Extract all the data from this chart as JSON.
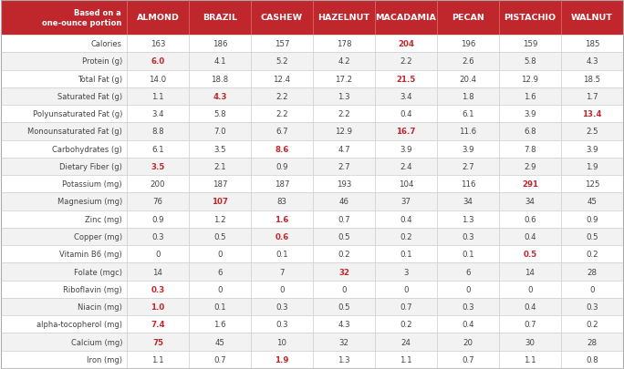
{
  "header_bg": "#c0272d",
  "header_text_color": "#ffffff",
  "highlight_color": "#c0272d",
  "normal_color": "#444444",
  "alt_row_bg": "#f2f2f2",
  "white_row_bg": "#ffffff",
  "border_color": "#cccccc",
  "header_divider_color": "#d9686b",
  "col_header_label": "Based on a\none-ounce portion",
  "columns": [
    "ALMOND",
    "BRAZIL",
    "CASHEW",
    "HAZELNUT",
    "MACADAMIA",
    "PECAN",
    "PISTACHIO",
    "WALNUT"
  ],
  "rows": [
    {
      "label": "Calories",
      "values": [
        "163",
        "186",
        "157",
        "178",
        "204",
        "196",
        "159",
        "185"
      ],
      "bold_indices": [
        4
      ]
    },
    {
      "label": "Protein (g)",
      "values": [
        "6.0",
        "4.1",
        "5.2",
        "4.2",
        "2.2",
        "2.6",
        "5.8",
        "4.3"
      ],
      "bold_indices": [
        0
      ]
    },
    {
      "label": "Total Fat (g)",
      "values": [
        "14.0",
        "18.8",
        "12.4",
        "17.2",
        "21.5",
        "20.4",
        "12.9",
        "18.5"
      ],
      "bold_indices": [
        4
      ]
    },
    {
      "label": "Saturated Fat (g)",
      "values": [
        "1.1",
        "4.3",
        "2.2",
        "1.3",
        "3.4",
        "1.8",
        "1.6",
        "1.7"
      ],
      "bold_indices": [
        1
      ]
    },
    {
      "label": "Polyunsaturated Fat (g)",
      "values": [
        "3.4",
        "5.8",
        "2.2",
        "2.2",
        "0.4",
        "6.1",
        "3.9",
        "13.4"
      ],
      "bold_indices": [
        7
      ]
    },
    {
      "label": "Monounsaturated Fat (g)",
      "values": [
        "8.8",
        "7.0",
        "6.7",
        "12.9",
        "16.7",
        "11.6",
        "6.8",
        "2.5"
      ],
      "bold_indices": [
        4
      ]
    },
    {
      "label": "Carbohydrates (g)",
      "values": [
        "6.1",
        "3.5",
        "8.6",
        "4.7",
        "3.9",
        "3.9",
        "7.8",
        "3.9"
      ],
      "bold_indices": [
        2
      ]
    },
    {
      "label": "Dietary Fiber (g)",
      "values": [
        "3.5",
        "2.1",
        "0.9",
        "2.7",
        "2.4",
        "2.7",
        "2.9",
        "1.9"
      ],
      "bold_indices": [
        0
      ]
    },
    {
      "label": "Potassium (mg)",
      "values": [
        "200",
        "187",
        "187",
        "193",
        "104",
        "116",
        "291",
        "125"
      ],
      "bold_indices": [
        6
      ]
    },
    {
      "label": "Magnesium (mg)",
      "values": [
        "76",
        "107",
        "83",
        "46",
        "37",
        "34",
        "34",
        "45"
      ],
      "bold_indices": [
        1
      ]
    },
    {
      "label": "Zinc (mg)",
      "values": [
        "0.9",
        "1.2",
        "1.6",
        "0.7",
        "0.4",
        "1.3",
        "0.6",
        "0.9"
      ],
      "bold_indices": [
        2
      ]
    },
    {
      "label": "Copper (mg)",
      "values": [
        "0.3",
        "0.5",
        "0.6",
        "0.5",
        "0.2",
        "0.3",
        "0.4",
        "0.5"
      ],
      "bold_indices": [
        2
      ]
    },
    {
      "label": "Vitamin B6 (mg)",
      "values": [
        "0",
        "0",
        "0.1",
        "0.2",
        "0.1",
        "0.1",
        "0.5",
        "0.2"
      ],
      "bold_indices": [
        6
      ]
    },
    {
      "label": "Folate (mgc)",
      "values": [
        "14",
        "6",
        "7",
        "32",
        "3",
        "6",
        "14",
        "28"
      ],
      "bold_indices": [
        3
      ]
    },
    {
      "label": "Riboflavin (mg)",
      "values": [
        "0.3",
        "0",
        "0",
        "0",
        "0",
        "0",
        "0",
        "0"
      ],
      "bold_indices": [
        0
      ]
    },
    {
      "label": "Niacin (mg)",
      "values": [
        "1.0",
        "0.1",
        "0.3",
        "0.5",
        "0.7",
        "0.3",
        "0.4",
        "0.3"
      ],
      "bold_indices": [
        0
      ]
    },
    {
      "label": "alpha-tocopherol (mg)",
      "values": [
        "7.4",
        "1.6",
        "0.3",
        "4.3",
        "0.2",
        "0.4",
        "0.7",
        "0.2"
      ],
      "bold_indices": [
        0
      ]
    },
    {
      "label": "Calcium (mg)",
      "values": [
        "75",
        "45",
        "10",
        "32",
        "24",
        "20",
        "30",
        "28"
      ],
      "bold_indices": [
        0
      ]
    },
    {
      "label": "Iron (mg)",
      "values": [
        "1.1",
        "0.7",
        "1.9",
        "1.3",
        "1.1",
        "0.7",
        "1.1",
        "0.8"
      ],
      "bold_indices": [
        2
      ]
    }
  ]
}
